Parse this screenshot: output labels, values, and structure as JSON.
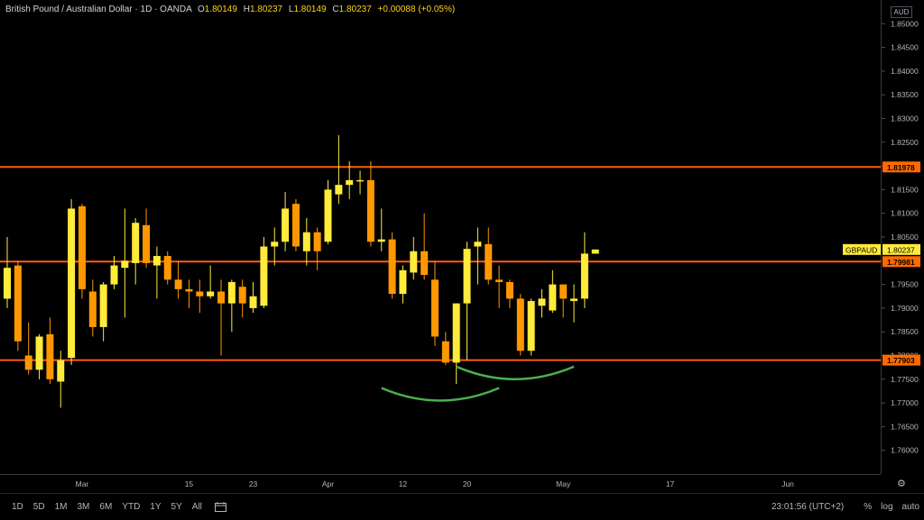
{
  "header": {
    "symbol_title": "British Pound / Australian Dollar · 1D · OANDA",
    "open_label": "O",
    "open": "1.80149",
    "high_label": "H",
    "high": "1.80237",
    "low_label": "L",
    "low": "1.80149",
    "close_label": "C",
    "close": "1.80237",
    "change": "+0.00088 (+0.05%)"
  },
  "currency": "AUD",
  "symbol_tag": "GBPAUD",
  "last_price": "1.80237",
  "bottom_bar": {
    "timeframes": [
      "1D",
      "5D",
      "1M",
      "3M",
      "6M",
      "YTD",
      "1Y",
      "5Y",
      "All"
    ],
    "clock": "23:01:56 (UTC+2)",
    "percent": "%",
    "log": "log",
    "auto": "auto"
  },
  "colors": {
    "up": "#ffeb3b",
    "down": "#ff9800",
    "level_line": "#ff5a0f",
    "level_label_bg": "#ff6a00",
    "curve": "#4caf50",
    "last_price_bg": "#ffeb3b"
  },
  "chart_data": {
    "type": "candlestick",
    "title": "British Pound / Australian Dollar",
    "ylim": [
      1.755,
      1.855
    ],
    "y_ticks": [
      "1.76000",
      "1.76500",
      "1.77000",
      "1.77500",
      "1.78000",
      "1.78500",
      "1.79000",
      "1.79500",
      "1.80000",
      "1.80500",
      "1.81000",
      "1.81500",
      "1.82000",
      "1.82500",
      "1.83000",
      "1.83500",
      "1.84000",
      "1.84500",
      "1.85000"
    ],
    "x_ticks": [
      {
        "label": "Mar",
        "index": 7
      },
      {
        "label": "15",
        "index": 17
      },
      {
        "label": "23",
        "index": 23
      },
      {
        "label": "Apr",
        "index": 30
      },
      {
        "label": "12",
        "index": 37
      },
      {
        "label": "20",
        "index": 43
      },
      {
        "label": "May",
        "index": 52
      },
      {
        "label": "17",
        "index": 62
      },
      {
        "label": "Jun",
        "index": 73
      }
    ],
    "horizontal_levels": [
      "1.81978",
      "1.79981",
      "1.77903"
    ],
    "annotations": [
      {
        "type": "arc",
        "from_index": 35,
        "to_index": 46,
        "bottom_price": 1.7705
      },
      {
        "type": "arc",
        "from_index": 42,
        "to_index": 53,
        "bottom_price": 1.775
      }
    ],
    "candles": [
      {
        "o": 1.792,
        "h": 1.805,
        "l": 1.79,
        "c": 1.7985
      },
      {
        "o": 1.799,
        "h": 1.8,
        "l": 1.781,
        "c": 1.783
      },
      {
        "o": 1.78,
        "h": 1.787,
        "l": 1.776,
        "c": 1.777
      },
      {
        "o": 1.777,
        "h": 1.7845,
        "l": 1.775,
        "c": 1.784
      },
      {
        "o": 1.7845,
        "h": 1.788,
        "l": 1.774,
        "c": 1.775
      },
      {
        "o": 1.7745,
        "h": 1.781,
        "l": 1.769,
        "c": 1.779
      },
      {
        "o": 1.7795,
        "h": 1.813,
        "l": 1.778,
        "c": 1.811
      },
      {
        "o": 1.8115,
        "h": 1.812,
        "l": 1.792,
        "c": 1.794
      },
      {
        "o": 1.7935,
        "h": 1.796,
        "l": 1.784,
        "c": 1.786
      },
      {
        "o": 1.786,
        "h": 1.7955,
        "l": 1.783,
        "c": 1.795
      },
      {
        "o": 1.795,
        "h": 1.801,
        "l": 1.794,
        "c": 1.799
      },
      {
        "o": 1.7985,
        "h": 1.811,
        "l": 1.788,
        "c": 1.8
      },
      {
        "o": 1.7995,
        "h": 1.809,
        "l": 1.795,
        "c": 1.808
      },
      {
        "o": 1.8075,
        "h": 1.811,
        "l": 1.7985,
        "c": 1.7995
      },
      {
        "o": 1.799,
        "h": 1.803,
        "l": 1.792,
        "c": 1.801
      },
      {
        "o": 1.801,
        "h": 1.802,
        "l": 1.795,
        "c": 1.796
      },
      {
        "o": 1.796,
        "h": 1.8,
        "l": 1.792,
        "c": 1.794
      },
      {
        "o": 1.794,
        "h": 1.796,
        "l": 1.79,
        "c": 1.7935
      },
      {
        "o": 1.7935,
        "h": 1.796,
        "l": 1.789,
        "c": 1.7925
      },
      {
        "o": 1.7925,
        "h": 1.799,
        "l": 1.792,
        "c": 1.7935
      },
      {
        "o": 1.7935,
        "h": 1.796,
        "l": 1.78,
        "c": 1.791
      },
      {
        "o": 1.791,
        "h": 1.796,
        "l": 1.785,
        "c": 1.7955
      },
      {
        "o": 1.7945,
        "h": 1.796,
        "l": 1.788,
        "c": 1.791
      },
      {
        "o": 1.79,
        "h": 1.7955,
        "l": 1.789,
        "c": 1.7925
      },
      {
        "o": 1.7905,
        "h": 1.805,
        "l": 1.79,
        "c": 1.803
      },
      {
        "o": 1.803,
        "h": 1.807,
        "l": 1.799,
        "c": 1.804
      },
      {
        "o": 1.804,
        "h": 1.8145,
        "l": 1.802,
        "c": 1.811
      },
      {
        "o": 1.812,
        "h": 1.813,
        "l": 1.802,
        "c": 1.803
      },
      {
        "o": 1.802,
        "h": 1.809,
        "l": 1.799,
        "c": 1.806
      },
      {
        "o": 1.806,
        "h": 1.807,
        "l": 1.798,
        "c": 1.802
      },
      {
        "o": 1.804,
        "h": 1.817,
        "l": 1.8035,
        "c": 1.815
      },
      {
        "o": 1.814,
        "h": 1.8265,
        "l": 1.812,
        "c": 1.816
      },
      {
        "o": 1.816,
        "h": 1.821,
        "l": 1.813,
        "c": 1.817
      },
      {
        "o": 1.817,
        "h": 1.819,
        "l": 1.814,
        "c": 1.817
      },
      {
        "o": 1.817,
        "h": 1.821,
        "l": 1.803,
        "c": 1.804
      },
      {
        "o": 1.804,
        "h": 1.811,
        "l": 1.802,
        "c": 1.8045
      },
      {
        "o": 1.8045,
        "h": 1.806,
        "l": 1.792,
        "c": 1.793
      },
      {
        "o": 1.793,
        "h": 1.799,
        "l": 1.791,
        "c": 1.798
      },
      {
        "o": 1.7975,
        "h": 1.805,
        "l": 1.796,
        "c": 1.802
      },
      {
        "o": 1.802,
        "h": 1.81,
        "l": 1.796,
        "c": 1.797
      },
      {
        "o": 1.796,
        "h": 1.8,
        "l": 1.782,
        "c": 1.784
      },
      {
        "o": 1.783,
        "h": 1.785,
        "l": 1.778,
        "c": 1.7785
      },
      {
        "o": 1.7785,
        "h": 1.791,
        "l": 1.774,
        "c": 1.791
      },
      {
        "o": 1.791,
        "h": 1.804,
        "l": 1.779,
        "c": 1.8025
      },
      {
        "o": 1.803,
        "h": 1.807,
        "l": 1.795,
        "c": 1.804
      },
      {
        "o": 1.8035,
        "h": 1.807,
        "l": 1.795,
        "c": 1.796
      },
      {
        "o": 1.796,
        "h": 1.799,
        "l": 1.79,
        "c": 1.7955
      },
      {
        "o": 1.7955,
        "h": 1.796,
        "l": 1.79,
        "c": 1.792
      },
      {
        "o": 1.792,
        "h": 1.793,
        "l": 1.78,
        "c": 1.781
      },
      {
        "o": 1.781,
        "h": 1.792,
        "l": 1.78,
        "c": 1.7915
      },
      {
        "o": 1.7905,
        "h": 1.794,
        "l": 1.788,
        "c": 1.792
      },
      {
        "o": 1.7895,
        "h": 1.798,
        "l": 1.789,
        "c": 1.795
      },
      {
        "o": 1.795,
        "h": 1.795,
        "l": 1.788,
        "c": 1.792
      },
      {
        "o": 1.7915,
        "h": 1.795,
        "l": 1.787,
        "c": 1.792
      },
      {
        "o": 1.792,
        "h": 1.806,
        "l": 1.79,
        "c": 1.8015
      },
      {
        "o": 1.80149,
        "h": 1.80237,
        "l": 1.80149,
        "c": 1.80237
      }
    ]
  }
}
